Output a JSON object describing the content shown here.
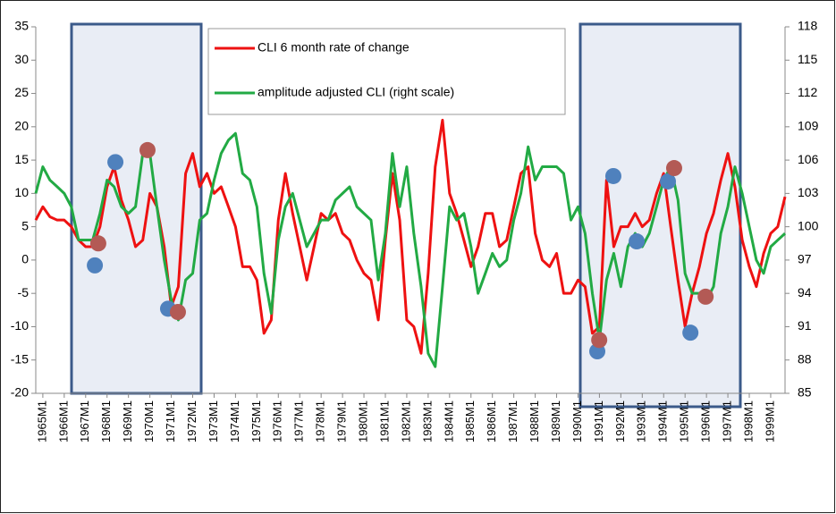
{
  "chart_data": {
    "type": "line",
    "x": [
      1964.67,
      1965,
      1965.33,
      1965.67,
      1966,
      1966.33,
      1966.67,
      1967,
      1967.33,
      1967.67,
      1968,
      1968.33,
      1968.67,
      1969,
      1969.33,
      1969.67,
      1970,
      1970.33,
      1970.67,
      1971,
      1971.33,
      1971.67,
      1972,
      1972.33,
      1972.67,
      1973,
      1973.33,
      1973.67,
      1974,
      1974.33,
      1974.67,
      1975,
      1975.33,
      1975.67,
      1976,
      1976.33,
      1976.67,
      1977,
      1977.33,
      1977.67,
      1978,
      1978.33,
      1978.67,
      1979,
      1979.33,
      1979.67,
      1980,
      1980.33,
      1980.67,
      1981,
      1981.33,
      1981.67,
      1982,
      1982.33,
      1982.67,
      1983,
      1983.33,
      1983.67,
      1984,
      1984.33,
      1984.67,
      1985,
      1985.33,
      1985.67,
      1986,
      1986.33,
      1986.67,
      1987,
      1987.33,
      1987.67,
      1988,
      1988.33,
      1988.67,
      1989,
      1989.33,
      1989.67,
      1990,
      1990.33,
      1990.67,
      1991,
      1991.33,
      1991.67,
      1992,
      1992.33,
      1992.67,
      1993,
      1993.33,
      1993.67,
      1994,
      1994.33,
      1994.67,
      1995,
      1995.33,
      1995.67,
      1996,
      1996.33,
      1996.67,
      1997,
      1997.33,
      1997.67,
      1998,
      1998.33,
      1998.67,
      1999,
      1999.33,
      1999.67
    ],
    "series": [
      {
        "name": "CLI 6 month rate of change",
        "color": "#ee1111",
        "axis": "y",
        "values": [
          6,
          8,
          6.5,
          6,
          6,
          5,
          3,
          2,
          2,
          5,
          11,
          14,
          9,
          6,
          2,
          3,
          10,
          8,
          2,
          -7,
          -4,
          13,
          16,
          11,
          13,
          10,
          11,
          8,
          5,
          -1,
          -1,
          -3,
          -11,
          -9,
          6,
          13,
          7,
          2,
          -3,
          2,
          7,
          6,
          7,
          4,
          3,
          0,
          -2,
          -3,
          -9,
          3,
          13,
          6,
          -9,
          -10,
          -14,
          -2,
          14,
          21,
          10,
          7,
          3,
          -1,
          2,
          7,
          7,
          2,
          3,
          8,
          13,
          14,
          4,
          0,
          -1,
          1,
          -5,
          -5,
          -3,
          -4,
          -11,
          -10,
          12,
          2,
          5,
          5,
          7,
          5,
          6,
          10,
          13,
          5,
          -3,
          -10,
          -5,
          -1,
          4,
          7,
          12,
          16,
          11,
          3,
          -1,
          -4,
          1,
          4,
          5,
          9.5
        ]
      },
      {
        "name": "amplitude adjusted CLI (right scale)",
        "color": "#22aa44",
        "axis": "y2",
        "values": [
          103,
          105.4,
          104.2,
          103.6,
          103,
          101.8,
          98.8,
          98.8,
          98.8,
          101.2,
          104.2,
          103.6,
          101.8,
          101.2,
          101.8,
          106.6,
          106.6,
          101.8,
          97,
          93.4,
          91.6,
          95.2,
          95.8,
          100.6,
          101.2,
          104.2,
          106.6,
          107.8,
          108.4,
          104.8,
          104.2,
          101.8,
          95.8,
          92.2,
          98.8,
          101.8,
          103,
          100.6,
          98.2,
          99.4,
          100.6,
          100.6,
          102.4,
          103,
          103.6,
          101.8,
          101.2,
          100.6,
          95.2,
          99.4,
          106.6,
          101.8,
          105.4,
          99.4,
          94.6,
          88.6,
          87.4,
          94.6,
          101.8,
          100.6,
          101.2,
          98.2,
          94,
          95.8,
          97.6,
          96.4,
          97,
          100.6,
          103,
          107.2,
          104.2,
          105.4,
          105.4,
          105.4,
          104.8,
          100.6,
          101.8,
          99.4,
          94,
          89.8,
          95.2,
          97.6,
          94.6,
          98.2,
          99.4,
          98.2,
          99.4,
          101.8,
          104.2,
          105.4,
          102.4,
          95.8,
          94,
          94,
          93.4,
          94.6,
          99.4,
          101.8,
          105.4,
          103,
          100,
          97,
          95.8,
          98.2,
          98.8,
          99.4
        ]
      }
    ],
    "markers": [
      {
        "x": 1967.43,
        "value": -0.8,
        "color": "#4f81bd"
      },
      {
        "x": 1967.59,
        "value": 2.5,
        "color": "#b35a55"
      },
      {
        "x": 1968.39,
        "value": 14.7,
        "color": "#4f81bd"
      },
      {
        "x": 1969.89,
        "value": 16.5,
        "color": "#b35a55"
      },
      {
        "x": 1970.85,
        "value": -7.3,
        "color": "#4f81bd"
      },
      {
        "x": 1971.31,
        "value": -7.8,
        "color": "#b35a55"
      },
      {
        "x": 1990.9,
        "value": -13.7,
        "color": "#4f81bd"
      },
      {
        "x": 1990.99,
        "value": -12,
        "color": "#b35a55"
      },
      {
        "x": 1991.65,
        "value": 12.6,
        "color": "#4f81bd"
      },
      {
        "x": 1992.74,
        "value": 2.8,
        "color": "#4f81bd"
      },
      {
        "x": 1994.2,
        "value": 11.8,
        "color": "#4f81bd"
      },
      {
        "x": 1994.49,
        "value": 13.8,
        "color": "#b35a55"
      },
      {
        "x": 1995.25,
        "value": -10.9,
        "color": "#4f81bd"
      },
      {
        "x": 1995.96,
        "value": -5.5,
        "color": "#b35a55"
      }
    ],
    "xlim": [
      1964.67,
      1999.67
    ],
    "xticks": [
      {
        "value": 1965,
        "label": "1965M1"
      },
      {
        "value": 1966,
        "label": "1966M1"
      },
      {
        "value": 1967,
        "label": "1967M1"
      },
      {
        "value": 1968,
        "label": "1968M1"
      },
      {
        "value": 1969,
        "label": "1969M1"
      },
      {
        "value": 1970,
        "label": "1970M1"
      },
      {
        "value": 1971,
        "label": "1971M1"
      },
      {
        "value": 1972,
        "label": "1972M1"
      },
      {
        "value": 1973,
        "label": "1973M1"
      },
      {
        "value": 1974,
        "label": "1974M1"
      },
      {
        "value": 1975,
        "label": "1975M1"
      },
      {
        "value": 1976,
        "label": "1976M1"
      },
      {
        "value": 1977,
        "label": "1977M1"
      },
      {
        "value": 1978,
        "label": "1978M1"
      },
      {
        "value": 1979,
        "label": "1979M1"
      },
      {
        "value": 1980,
        "label": "1980M1"
      },
      {
        "value": 1981,
        "label": "1981M1"
      },
      {
        "value": 1982,
        "label": "1982M1"
      },
      {
        "value": 1983,
        "label": "1983M1"
      },
      {
        "value": 1984,
        "label": "1984M1"
      },
      {
        "value": 1985,
        "label": "1985M1"
      },
      {
        "value": 1986,
        "label": "1986M1"
      },
      {
        "value": 1987,
        "label": "1987M1"
      },
      {
        "value": 1988,
        "label": "1988M1"
      },
      {
        "value": 1989,
        "label": "1989M1"
      },
      {
        "value": 1990,
        "label": "1990M1"
      },
      {
        "value": 1991,
        "label": "1991M1"
      },
      {
        "value": 1992,
        "label": "1992M1"
      },
      {
        "value": 1993,
        "label": "1993M1"
      },
      {
        "value": 1994,
        "label": "1994M1"
      },
      {
        "value": 1995,
        "label": "1995M1"
      },
      {
        "value": 1996,
        "label": "1996M1"
      },
      {
        "value": 1997,
        "label": "1997M1"
      },
      {
        "value": 1998,
        "label": "1998M1"
      },
      {
        "value": 1999,
        "label": "1999M1"
      }
    ],
    "ylim": [
      -20,
      35
    ],
    "yticks": [
      -20,
      -15,
      -10,
      -5,
      0,
      5,
      10,
      15,
      20,
      25,
      30,
      35
    ],
    "y2lim": [
      85,
      118
    ],
    "y2ticks": [
      85,
      88,
      91,
      94,
      97,
      100,
      103,
      106,
      109,
      112,
      115,
      118
    ],
    "grid": false
  }
}
